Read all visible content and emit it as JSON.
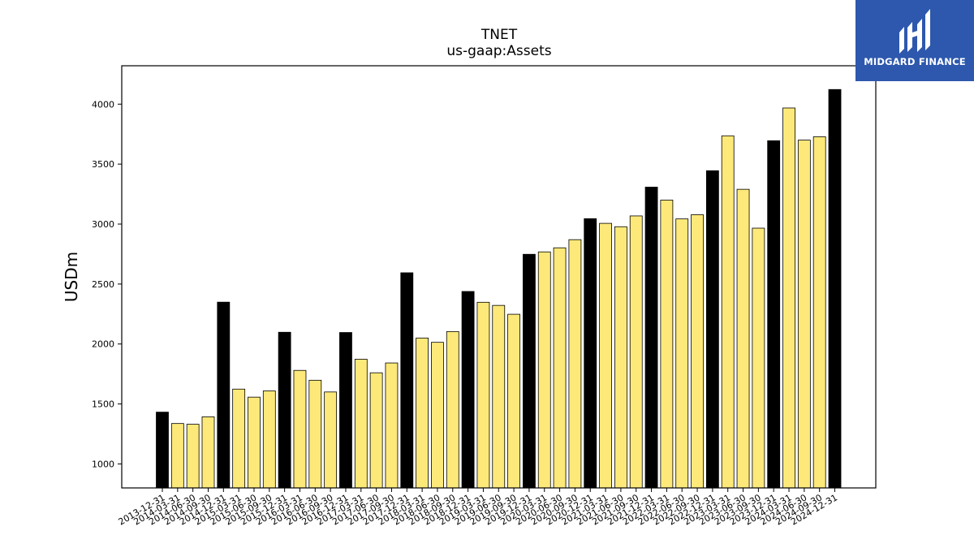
{
  "chart_data": {
    "type": "bar",
    "title": "TNET",
    "subtitle": "us-gaap:Assets",
    "ylabel": "USDm",
    "xlabel": "",
    "ylim": [
      800,
      4320
    ],
    "yticks": [
      1000,
      1500,
      2000,
      2500,
      3000,
      3500,
      4000
    ],
    "grid": false,
    "categories": [
      "2013-12-31",
      "2014-03-31",
      "2014-06-30",
      "2014-09-30",
      "2014-12-31",
      "2015-03-31",
      "2015-06-30",
      "2015-09-30",
      "2015-12-31",
      "2016-03-31",
      "2016-06-30",
      "2016-09-30",
      "2016-12-31",
      "2017-03-31",
      "2017-06-30",
      "2017-09-30",
      "2017-12-31",
      "2018-03-31",
      "2018-06-30",
      "2018-09-30",
      "2018-12-31",
      "2019-03-31",
      "2019-06-30",
      "2019-09-30",
      "2019-12-31",
      "2020-03-31",
      "2020-06-30",
      "2020-09-30",
      "2020-12-31",
      "2021-03-31",
      "2021-06-30",
      "2021-09-30",
      "2021-12-31",
      "2022-03-31",
      "2022-06-30",
      "2022-09-30",
      "2022-12-31",
      "2023-03-31",
      "2023-06-30",
      "2023-09-30",
      "2023-12-31",
      "2024-03-31",
      "2024-06-30",
      "2024-09-30",
      "2024-12-31"
    ],
    "values": [
      1432,
      1337,
      1331,
      1393,
      2349,
      1624,
      1557,
      1609,
      2098,
      1780,
      1698,
      1600,
      2096,
      1873,
      1760,
      1842,
      2594,
      2050,
      2014,
      2104,
      2438,
      2348,
      2322,
      2248,
      2748,
      2768,
      2802,
      2870,
      3045,
      3006,
      2978,
      3068,
      3308,
      3200,
      3043,
      3078,
      3445,
      3736,
      3290,
      2966,
      3695,
      3968,
      3700,
      3728,
      4122
    ],
    "quarter_end_highlight": [
      true,
      false,
      false,
      false,
      true,
      false,
      false,
      false,
      true,
      false,
      false,
      false,
      true,
      false,
      false,
      false,
      true,
      false,
      false,
      false,
      true,
      false,
      false,
      false,
      true,
      false,
      false,
      false,
      true,
      false,
      false,
      false,
      true,
      false,
      false,
      false,
      true,
      false,
      false,
      false,
      true,
      false,
      false,
      false,
      true
    ],
    "colors": {
      "highlight": "#000000",
      "normal": "#fde97a",
      "edge": "#000000"
    }
  },
  "logo": {
    "text": "MIDGARD FINANCE",
    "background": "#2d58ad"
  }
}
